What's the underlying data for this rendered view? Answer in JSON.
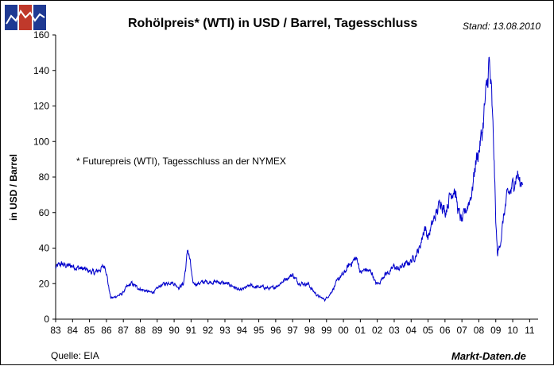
{
  "header": {
    "title": "Rohölpreis* (WTI) in USD / Barrel, Tagesschluss",
    "stand": "Stand: 13.08.2010"
  },
  "footer": {
    "source": "Quelle: EIA",
    "brand": "Markt-Daten.de"
  },
  "logo": {
    "colors": [
      "#1f3a93",
      "#c0392b",
      "#1f3a93"
    ]
  },
  "chart_data": {
    "type": "line",
    "title": "Rohölpreis* (WTI) in USD / Barrel, Tagesschluss",
    "xlabel": "",
    "ylabel": "in USD / Barrel",
    "annotation": "* Futurepreis (WTI), Tagesschluss an der NYMEX",
    "ylim": [
      0,
      160
    ],
    "yticks": [
      0,
      20,
      40,
      60,
      80,
      100,
      120,
      140,
      160
    ],
    "xlim": [
      1983,
      2011.5
    ],
    "xtick_labels": [
      "83",
      "84",
      "85",
      "86",
      "87",
      "88",
      "89",
      "90",
      "91",
      "92",
      "93",
      "94",
      "95",
      "96",
      "97",
      "98",
      "99",
      "00",
      "01",
      "02",
      "03",
      "04",
      "05",
      "06",
      "07",
      "08",
      "09",
      "10",
      "11"
    ],
    "grid": false,
    "line_color": "#0000cc",
    "series": [
      {
        "x": [
          1983.0,
          1983.3,
          1983.7,
          1984.0,
          1984.3,
          1984.7,
          1985.0,
          1985.3,
          1985.6,
          1985.9,
          1986.0,
          1986.1,
          1986.25,
          1986.4,
          1986.6,
          1986.9,
          1987.2,
          1987.5,
          1987.8,
          1988.0,
          1988.3,
          1988.6,
          1988.9,
          1989.2,
          1989.5,
          1989.8,
          1990.0,
          1990.3,
          1990.55,
          1990.7,
          1990.8,
          1990.95,
          1991.1,
          1991.4,
          1991.8,
          1992.2,
          1992.6,
          1993.0,
          1993.4,
          1993.9,
          1994.1,
          1994.5,
          1994.9,
          1995.3,
          1995.7,
          1996.1,
          1996.5,
          1996.8,
          1997.0,
          1997.3,
          1997.6,
          1997.9,
          1998.2,
          1998.5,
          1998.9,
          1999.0,
          1999.2,
          1999.5,
          1999.8,
          2000.0,
          2000.3,
          2000.7,
          2000.85,
          2001.0,
          2001.3,
          2001.7,
          2001.9,
          2002.1,
          2002.4,
          2002.8,
          2003.0,
          2003.2,
          2003.5,
          2003.9,
          2004.2,
          2004.5,
          2004.8,
          2005.0,
          2005.3,
          2005.6,
          2005.75,
          2006.0,
          2006.3,
          2006.55,
          2006.8,
          2007.0,
          2007.3,
          2007.6,
          2007.8,
          2008.0,
          2008.2,
          2008.35,
          2008.5,
          2008.6,
          2008.75,
          2008.9,
          2009.0,
          2009.1,
          2009.3,
          2009.5,
          2009.7,
          2009.9,
          2010.1,
          2010.3,
          2010.45,
          2010.6
        ],
        "y": [
          29,
          31,
          30,
          30,
          29,
          28,
          27,
          26,
          28,
          30,
          27,
          20,
          12,
          12,
          13,
          14,
          18,
          20,
          18,
          17,
          16,
          15,
          16,
          19,
          20,
          21,
          20,
          18,
          20,
          30,
          40,
          32,
          20,
          20,
          21,
          21,
          21,
          20,
          19,
          16,
          17,
          19,
          18,
          18,
          17,
          19,
          22,
          24,
          25,
          21,
          20,
          20,
          16,
          13,
          11,
          12,
          14,
          19,
          24,
          25,
          30,
          34,
          33,
          26,
          28,
          26,
          20,
          20,
          25,
          27,
          30,
          28,
          30,
          32,
          35,
          40,
          52,
          46,
          55,
          62,
          68,
          60,
          70,
          74,
          60,
          55,
          63,
          72,
          88,
          95,
          105,
          120,
          132,
          145,
          125,
          90,
          55,
          36,
          45,
          60,
          70,
          72,
          78,
          82,
          75,
          80
        ]
      }
    ]
  }
}
